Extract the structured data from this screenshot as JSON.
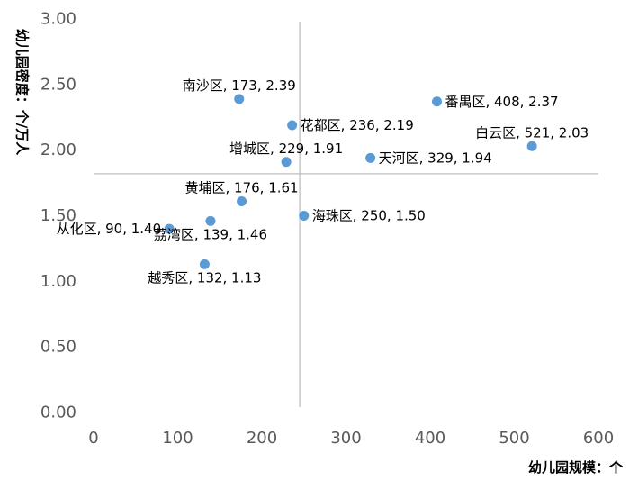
{
  "chart_data": {
    "type": "scatter",
    "xlabel": "幼儿园规模：个",
    "ylabel": "幼儿园密度：个/万人",
    "xlim": [
      0,
      600
    ],
    "ylim": [
      0,
      3
    ],
    "x_ticks": [
      "0",
      "100",
      "200",
      "300",
      "400",
      "500",
      "600"
    ],
    "y_ticks": [
      "0.00",
      "0.50",
      "1.00",
      "1.50",
      "2.00",
      "2.50",
      "3.00"
    ],
    "reference_lines": {
      "x": 245,
      "y": 1.82
    },
    "grid": false,
    "colors": {
      "marker": "#5b9bd5",
      "ref_line": "#bfbfbf",
      "tick_text": "#595959"
    },
    "points": [
      {
        "x": 173,
        "y": 2.39,
        "label": "南沙区, 173, 2.39",
        "pos": "above"
      },
      {
        "x": 408,
        "y": 2.37,
        "label": "番禺区, 408, 2.37",
        "pos": "right"
      },
      {
        "x": 236,
        "y": 2.19,
        "label": "花都区, 236, 2.19",
        "pos": "right"
      },
      {
        "x": 521,
        "y": 2.03,
        "label": "白云区, 521, 2.03",
        "pos": "above"
      },
      {
        "x": 229,
        "y": 1.91,
        "label": "增城区, 229, 1.91",
        "pos": "above"
      },
      {
        "x": 329,
        "y": 1.94,
        "label": "天河区, 329, 1.94",
        "pos": "right"
      },
      {
        "x": 176,
        "y": 1.61,
        "label": "黄埔区, 176, 1.61",
        "pos": "above"
      },
      {
        "x": 250,
        "y": 1.5,
        "label": "海珠区, 250, 1.50",
        "pos": "right"
      },
      {
        "x": 90,
        "y": 1.4,
        "label": "从化区, 90, 1.40",
        "pos": "left"
      },
      {
        "x": 139,
        "y": 1.46,
        "label": "荔湾区, 139, 1.46",
        "pos": "below"
      },
      {
        "x": 132,
        "y": 1.13,
        "label": "越秀区, 132, 1.13",
        "pos": "below"
      }
    ]
  }
}
